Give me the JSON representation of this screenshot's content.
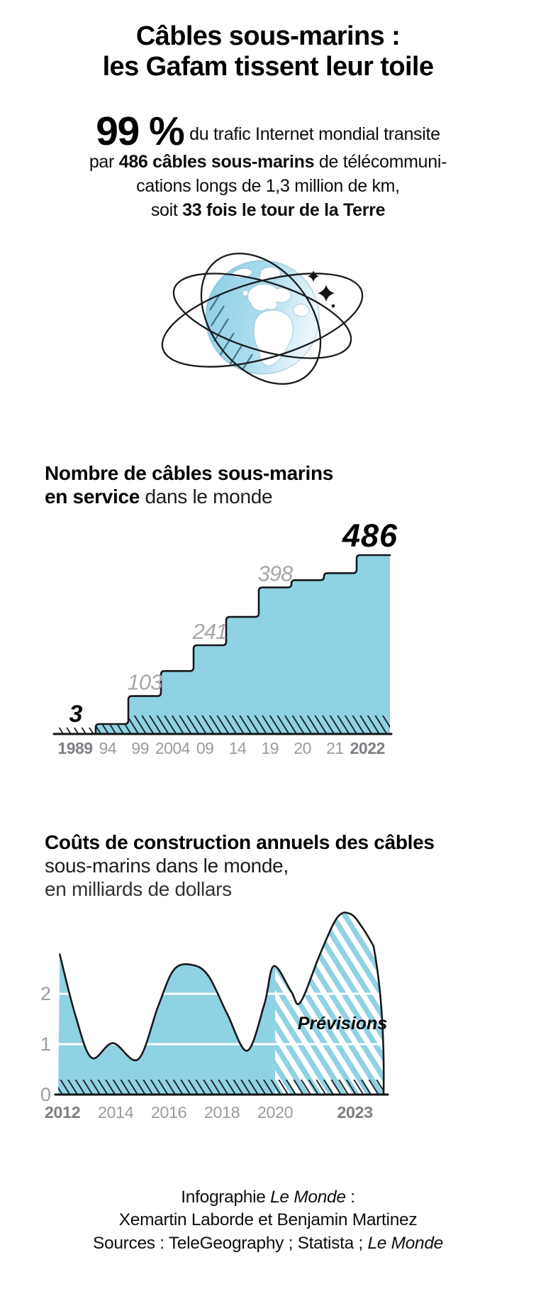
{
  "colors": {
    "area_blue": "#8fd2e3",
    "globe_blue": "#a9dcee",
    "outline_dark": "#16181b",
    "gray_axis": "#9a9da0",
    "gray_axis_bold": "#7d8084",
    "gray_value": "#a6a8ab"
  },
  "title": {
    "line1": "Câbles sous-marins :",
    "line2": "les Gafam tissent leur toile"
  },
  "intro": {
    "stat": "99 %",
    "line1": "du trafic Internet mondial transite",
    "line2_pre": "par ",
    "line2_bold": "486 câbles sous-marins",
    "line2_post": " de télécommuni-",
    "line3": "cations longs de 1,3 million de km,",
    "line4_pre": "soit ",
    "line4_bold": "33 fois le tour de la Terre"
  },
  "section1": {
    "title_line1": "Nombre de câbles sous-marins",
    "title_line2_bold": "en service",
    "title_line2_rest": " dans le monde"
  },
  "section2": {
    "title_line1": "Coûts de construction annuels des câbles",
    "title_line2": "sous-marins dans le monde,",
    "title_line3": "en milliards de dollars"
  },
  "chart_data": [
    {
      "type": "step-area",
      "title": "Nombre de câbles sous-marins en service dans le monde",
      "x_ticks": [
        "1989",
        "94",
        "99",
        "2004",
        "09",
        "14",
        "19",
        "20",
        "21",
        "2022"
      ],
      "ylim": [
        0,
        486
      ],
      "levels": [
        {
          "value": 3,
          "label": "3"
        },
        {
          "value": 103,
          "label": "103"
        },
        {
          "value": 171
        },
        {
          "value": 241,
          "label": "241"
        },
        {
          "value": 318
        },
        {
          "value": 398,
          "label": "398"
        },
        {
          "value": 418
        },
        {
          "value": 437
        },
        {
          "value": 486,
          "label": "486"
        }
      ]
    },
    {
      "type": "area",
      "title": "Coûts de construction annuels des câbles sous-marins dans le monde, en milliards de dollars",
      "x_ticks": [
        "2012",
        "2014",
        "2016",
        "2018",
        "2020",
        "2023"
      ],
      "y_ticks": [
        "0",
        "1",
        "2"
      ],
      "ylim": [
        0,
        3.8
      ],
      "gridlines": [
        1,
        2
      ],
      "forecast_from": 2020,
      "forecast_label": "Prévisions",
      "series": [
        {
          "name": "coûts de construction (milliards de dollars)",
          "points": [
            [
              2011.9,
              2.78
            ],
            [
              2012.5,
              1.55
            ],
            [
              2013.1,
              0.73
            ],
            [
              2013.9,
              1.02
            ],
            [
              2014.85,
              0.7
            ],
            [
              2015.6,
              1.75
            ],
            [
              2016.2,
              2.48
            ],
            [
              2016.9,
              2.57
            ],
            [
              2017.5,
              2.35
            ],
            [
              2018.2,
              1.6
            ],
            [
              2018.95,
              0.87
            ],
            [
              2019.6,
              1.8
            ],
            [
              2019.95,
              2.55
            ],
            [
              2020.6,
              2.05
            ],
            [
              2020.95,
              1.83
            ],
            [
              2021.7,
              2.8
            ],
            [
              2022.35,
              3.52
            ],
            [
              2022.85,
              3.58
            ],
            [
              2023.3,
              3.3
            ],
            [
              2023.7,
              2.95
            ]
          ]
        }
      ]
    }
  ],
  "footer": {
    "l1_pre": "Infographie ",
    "l1_italic": "Le Monde",
    "l1_post": " :",
    "l2": "Xemartin Laborde et Benjamin Martinez",
    "l3_pre": "Sources : TeleGeography ; Statista ; ",
    "l3_italic": "Le Monde"
  }
}
